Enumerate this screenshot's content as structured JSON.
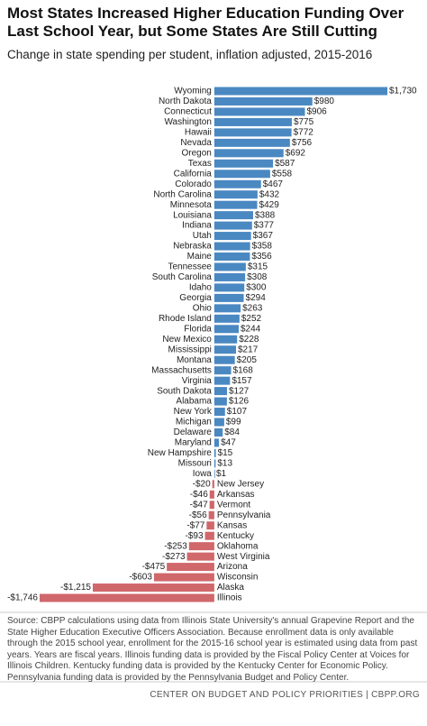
{
  "chart_data": {
    "type": "bar",
    "orientation": "horizontal",
    "title": "Most States Increased Higher Education Funding Over Last School Year, but Some States Are Still Cutting",
    "subtitle": "Change in state spending per student, inflation adjusted, 2015-2016",
    "categories": [
      "Wyoming",
      "North Dakota",
      "Connecticut",
      "Washington",
      "Hawaii",
      "Nevada",
      "Oregon",
      "Texas",
      "California",
      "Colorado",
      "North Carolina",
      "Minnesota",
      "Louisiana",
      "Indiana",
      "Utah",
      "Nebraska",
      "Maine",
      "Tennessee",
      "South Carolina",
      "Idaho",
      "Georgia",
      "Ohio",
      "Rhode Island",
      "Florida",
      "New Mexico",
      "Mississippi",
      "Montana",
      "Massachusetts",
      "Virginia",
      "South Dakota",
      "Alabama",
      "New York",
      "Michigan",
      "Delaware",
      "Maryland",
      "New Hampshire",
      "Missouri",
      "Iowa",
      "New Jersey",
      "Arkansas",
      "Vermont",
      "Pennsylvania",
      "Kansas",
      "Kentucky",
      "Oklahoma",
      "West Virginia",
      "Arizona",
      "Wisconsin",
      "Alaska",
      "Illinois"
    ],
    "values": [
      1730,
      980,
      906,
      775,
      772,
      756,
      692,
      587,
      558,
      467,
      432,
      429,
      388,
      377,
      367,
      358,
      356,
      315,
      308,
      300,
      294,
      263,
      252,
      244,
      228,
      217,
      205,
      168,
      157,
      127,
      126,
      107,
      99,
      84,
      47,
      15,
      13,
      1,
      -20,
      -46,
      -47,
      -56,
      -77,
      -93,
      -253,
      -273,
      -475,
      -603,
      -1215,
      -1746
    ],
    "value_labels": [
      "$1,730",
      "$980",
      "$906",
      "$775",
      "$772",
      "$756",
      "$692",
      "$587",
      "$558",
      "$467",
      "$432",
      "$429",
      "$388",
      "$377",
      "$367",
      "$358",
      "$356",
      "$315",
      "$308",
      "$300",
      "$294",
      "$263",
      "$252",
      "$244",
      "$228",
      "$217",
      "$205",
      "$168",
      "$157",
      "$127",
      "$126",
      "$107",
      "$99",
      "$84",
      "$47",
      "$15",
      "$13",
      "$1",
      "-$20",
      "-$46",
      "-$47",
      "-$56",
      "-$77",
      "-$93",
      "-$253",
      "-$273",
      "-$475",
      "-$603",
      "-$1,215",
      "-$1,746"
    ],
    "positive_color": "#4a88c2",
    "negative_color": "#d0676b",
    "source": "Source: CBPP calculations using data from Illinois State University's annual Grapevine Report and the State Higher Education Executive Officers Association. Because enrollment data is only available through the 2015 school year, enrollment for the 2015-16 school year is estimated using data from past years.  Years are fiscal years. Illinois funding data is provided by the Fiscal Policy Center at Voices for Illinois Children. Kentucky funding data is provided by the Kentucky Center for Economic Policy. Pennsylvania funding data is provided by the Pennsylvania Budget and Policy Center.",
    "footer": "CENTER ON BUDGET AND POLICY PRIORITIES | CBPP.ORG"
  }
}
